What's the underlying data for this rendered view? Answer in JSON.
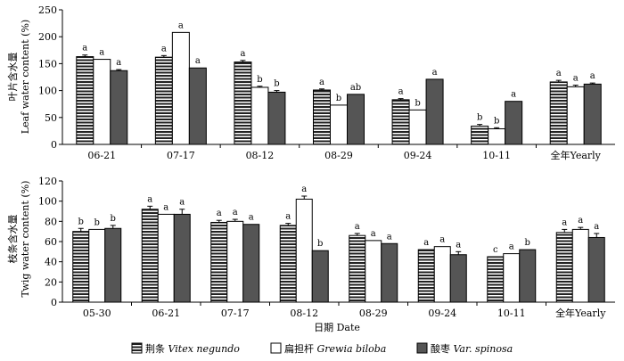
{
  "chart_data": [
    {
      "type": "bar",
      "ylabel_zh": "叶片含水量",
      "ylabel_en": "Leaf water content (%)",
      "ylim": [
        0,
        250
      ],
      "yticks": [
        0,
        50,
        100,
        150,
        200,
        250
      ],
      "categories": [
        "06-21",
        "07-17",
        "08-12",
        "08-29",
        "09-24",
        "10-11",
        "全年Yearly"
      ],
      "series": [
        {
          "name": "荆条",
          "values": [
            163,
            162,
            153,
            101,
            83,
            34,
            116
          ],
          "errors": [
            3,
            3,
            3,
            2,
            2,
            3,
            3
          ],
          "labels": [
            "a",
            "a",
            "a",
            "a",
            "a",
            "b",
            "a"
          ]
        },
        {
          "name": "扁担杆",
          "values": [
            158,
            208,
            106,
            73,
            64,
            29,
            107
          ],
          "errors": [
            0,
            0,
            2,
            0,
            0,
            2,
            3
          ],
          "labels": [
            "a",
            "a",
            "b",
            "b",
            "b",
            "b",
            "a"
          ]
        },
        {
          "name": "酸枣",
          "values": [
            137,
            142,
            97,
            93,
            121,
            80,
            112
          ],
          "errors": [
            2,
            0,
            3,
            0,
            0,
            0,
            2
          ],
          "labels": [
            "a",
            "a",
            "b",
            "ab",
            "a",
            "a",
            "a"
          ]
        }
      ]
    },
    {
      "type": "bar",
      "ylabel_zh": "枝条含水量",
      "ylabel_en": "Twig water content (%)",
      "xlabel": "日期 Date",
      "ylim": [
        0,
        120
      ],
      "yticks": [
        0,
        20,
        40,
        60,
        80,
        100,
        120
      ],
      "categories": [
        "05-30",
        "06-21",
        "07-17",
        "08-12",
        "08-29",
        "09-24",
        "10-11",
        "全年Yearly"
      ],
      "series": [
        {
          "name": "荆条",
          "values": [
            70,
            92,
            79,
            76,
            66,
            52,
            45,
            69
          ],
          "errors": [
            3,
            3,
            2,
            2,
            2,
            0,
            0,
            3
          ],
          "labels": [
            "b",
            "a",
            "a",
            "a",
            "a",
            "a",
            "c",
            "a"
          ]
        },
        {
          "name": "扁担杆",
          "values": [
            72,
            87,
            80,
            102,
            61,
            55,
            48,
            72
          ],
          "errors": [
            0,
            0,
            2,
            3,
            0,
            0,
            0,
            2
          ],
          "labels": [
            "b",
            "a",
            "a",
            "a",
            "a",
            "a",
            "a",
            "a"
          ]
        },
        {
          "name": "酸枣",
          "values": [
            73,
            87,
            77,
            51,
            58,
            47,
            52,
            64
          ],
          "errors": [
            3,
            5,
            0,
            0,
            0,
            3,
            0,
            4
          ],
          "labels": [
            "b",
            "a",
            "a",
            "b",
            "a",
            "a",
            "b",
            "a"
          ]
        }
      ]
    }
  ],
  "legend": [
    {
      "name_zh": "荆条",
      "name_sci": "Vitex negundo",
      "fill": "hatch"
    },
    {
      "name_zh": "扁担杆",
      "name_sci": "Grewia biloba",
      "fill": "#ffffff"
    },
    {
      "name_zh": "酸枣",
      "name_sci": "Var. spinosa",
      "fill": "#555555"
    }
  ]
}
